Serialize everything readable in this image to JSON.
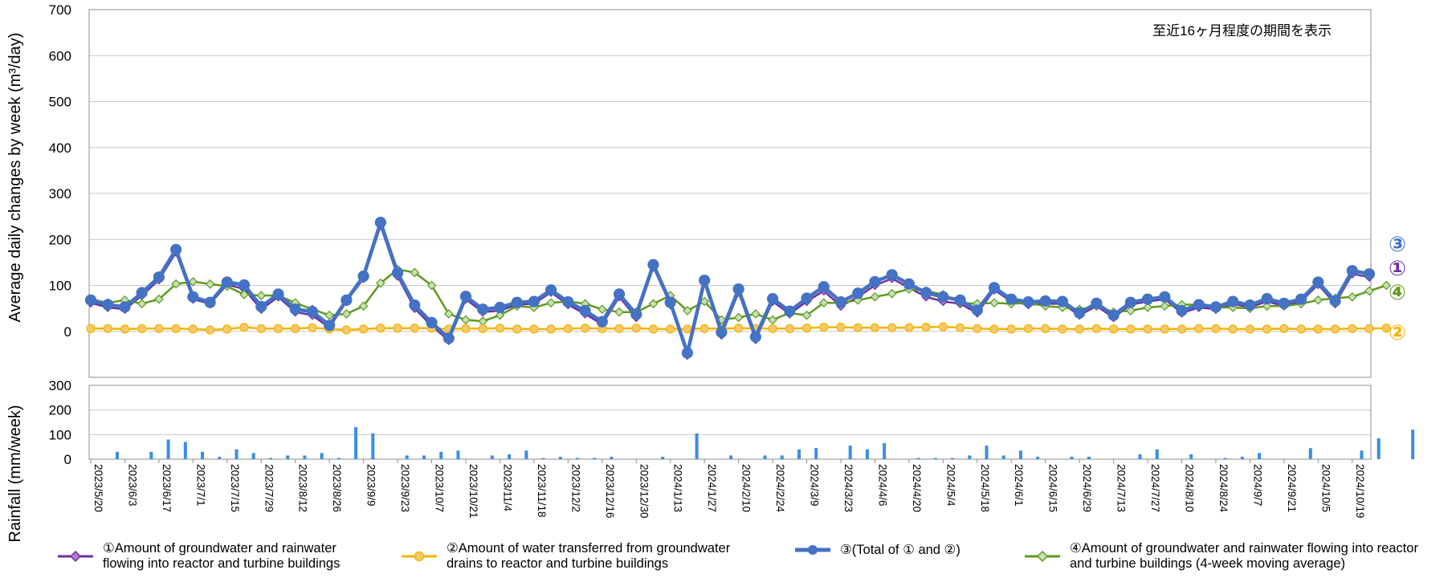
{
  "colors": {
    "series1": "#7030A0",
    "series2": "#F5B400",
    "series2_fill": "#F3C96B",
    "series3": "#4472C4",
    "series4": "#5E9A1E",
    "series4_fill": "#C6E0B4",
    "rain": "#3A8EE6",
    "grid": "#c8c8c8"
  },
  "chart_data": [
    {
      "type": "line",
      "title": "",
      "ylabel": "Average daily changes by week (m³/day)",
      "ylim": [
        -100,
        700
      ],
      "yticks": [
        0,
        100,
        200,
        300,
        400,
        500,
        600,
        700
      ],
      "grid": true,
      "annotation": "至近16ヶ月程度の期間を表示",
      "series_markers": [
        "③",
        "①",
        "④",
        "②"
      ],
      "series": [
        {
          "name": "①Amount of groundwater and rainwater flowing into reactor and turbine buildings",
          "values": [
            62,
            52,
            48,
            78,
            112,
            172,
            70,
            60,
            102,
            92,
            48,
            75,
            42,
            35,
            8,
            65,
            115,
            230,
            120,
            50,
            12,
            -20,
            70,
            42,
            45,
            58,
            60,
            85,
            58,
            38,
            15,
            75,
            30,
            140,
            58,
            -52,
            105,
            -8,
            85,
            -18,
            65,
            38,
            65,
            88,
            55,
            75,
            100,
            115,
            95,
            75,
            65,
            60,
            40,
            90,
            65,
            58,
            60,
            60,
            35,
            55,
            30,
            58,
            65,
            70,
            40,
            52,
            48,
            60,
            52,
            65,
            55,
            65,
            102,
            60,
            125,
            118
          ]
        },
        {
          "name": "②Amount of water transferred from groundwater drains to reactor and turbine buildings",
          "values": [
            6,
            6,
            5,
            6,
            6,
            6,
            5,
            3,
            5,
            9,
            6,
            6,
            6,
            8,
            5,
            3,
            5,
            7,
            7,
            7,
            7,
            5,
            6,
            6,
            7,
            5,
            5,
            5,
            6,
            7,
            6,
            6,
            7,
            5,
            5,
            5,
            6,
            6,
            7,
            6,
            6,
            6,
            7,
            9,
            9,
            8,
            8,
            8,
            8,
            9,
            10,
            8,
            6,
            5,
            5,
            6,
            6,
            5,
            5,
            6,
            5,
            5,
            5,
            5,
            5,
            6,
            6,
            5,
            5,
            5,
            6,
            5,
            5,
            5,
            6,
            6,
            7
          ]
        },
        {
          "name": "③(Total of ① and ②)",
          "values": [
            68,
            58,
            53,
            84,
            118,
            178,
            75,
            63,
            107,
            101,
            54,
            81,
            48,
            43,
            13,
            68,
            120,
            237,
            127,
            57,
            19,
            -15,
            76,
            48,
            52,
            63,
            65,
            90,
            64,
            45,
            21,
            81,
            37,
            145,
            63,
            -47,
            111,
            -2,
            92,
            -12,
            71,
            44,
            72,
            97,
            64,
            83,
            108,
            123,
            103,
            84,
            75,
            68,
            46,
            95,
            70,
            64,
            66,
            65,
            40,
            61,
            35,
            63,
            70,
            75,
            45,
            58,
            53,
            65,
            57,
            71,
            61,
            70,
            107,
            66,
            132,
            125
          ]
        },
        {
          "name": "④Amount of groundwater and rainwater flowing into reactor and turbine buildings (4-week moving average)",
          "values": [
            70,
            62,
            68,
            60,
            70,
            103,
            108,
            103,
            98,
            80,
            78,
            78,
            62,
            48,
            35,
            38,
            55,
            105,
            135,
            128,
            100,
            38,
            25,
            22,
            35,
            55,
            52,
            62,
            65,
            60,
            48,
            42,
            42,
            60,
            78,
            45,
            65,
            25,
            30,
            38,
            25,
            40,
            35,
            62,
            62,
            68,
            75,
            82,
            92,
            88,
            80,
            62,
            60,
            62,
            60,
            62,
            55,
            52,
            48,
            55,
            42,
            45,
            52,
            55,
            58,
            58,
            52,
            52,
            50,
            55,
            55,
            60,
            68,
            72,
            75,
            88,
            100
          ]
        }
      ]
    },
    {
      "type": "bar",
      "ylabel": "Rainfall (mm/week)",
      "xlabel": "",
      "ylim": [
        0,
        300
      ],
      "yticks": [
        0,
        100,
        200,
        300
      ],
      "grid": true,
      "x_ticks": [
        "2023/5/20",
        "2023/6/3",
        "2023/6/17",
        "2023/7/1",
        "2023/7/15",
        "2023/7/29",
        "2023/8/12",
        "2023/8/26",
        "2023/9/9",
        "2023/9/23",
        "2023/10/7",
        "2023/10/21",
        "2023/11/4",
        "2023/11/18",
        "2023/12/2",
        "2023/12/16",
        "2023/12/30",
        "2024/1/13",
        "2024/1/27",
        "2024/2/10",
        "2024/2/24",
        "2024/3/9",
        "2024/3/23",
        "2024/4/6",
        "2024/4/20",
        "2024/5/4",
        "2024/5/18",
        "2024/6/1",
        "2024/6/15",
        "2024/6/29",
        "2024/7/13",
        "2024/7/27",
        "2024/8/10",
        "2024/8/24",
        "2024/9/7",
        "2024/9/21",
        "2024/10/5",
        "2024/10/19"
      ],
      "values": [
        0,
        30,
        0,
        30,
        80,
        70,
        30,
        10,
        40,
        25,
        5,
        15,
        15,
        25,
        5,
        130,
        105,
        0,
        15,
        15,
        30,
        35,
        0,
        15,
        20,
        35,
        5,
        10,
        5,
        5,
        10,
        0,
        0,
        10,
        0,
        105,
        0,
        15,
        0,
        15,
        15,
        40,
        45,
        0,
        55,
        40,
        65,
        0,
        5,
        5,
        5,
        15,
        55,
        15,
        35,
        10,
        0,
        10,
        10,
        0,
        0,
        20,
        40,
        0,
        20,
        0,
        5,
        10,
        25,
        0,
        0,
        45,
        0,
        0,
        35,
        85,
        0,
        120
      ]
    }
  ],
  "legend": [
    {
      "label": "①Amount of groundwater and rainwater\nflowing into reactor and turbine buildings"
    },
    {
      "label": "②Amount of water transferred from groundwater\ndrains to reactor and turbine buildings"
    },
    {
      "label": "③(Total of ① and ②)"
    },
    {
      "label": "④Amount of groundwater and rainwater flowing into reactor\nand turbine buildings (4-week moving average)"
    }
  ]
}
